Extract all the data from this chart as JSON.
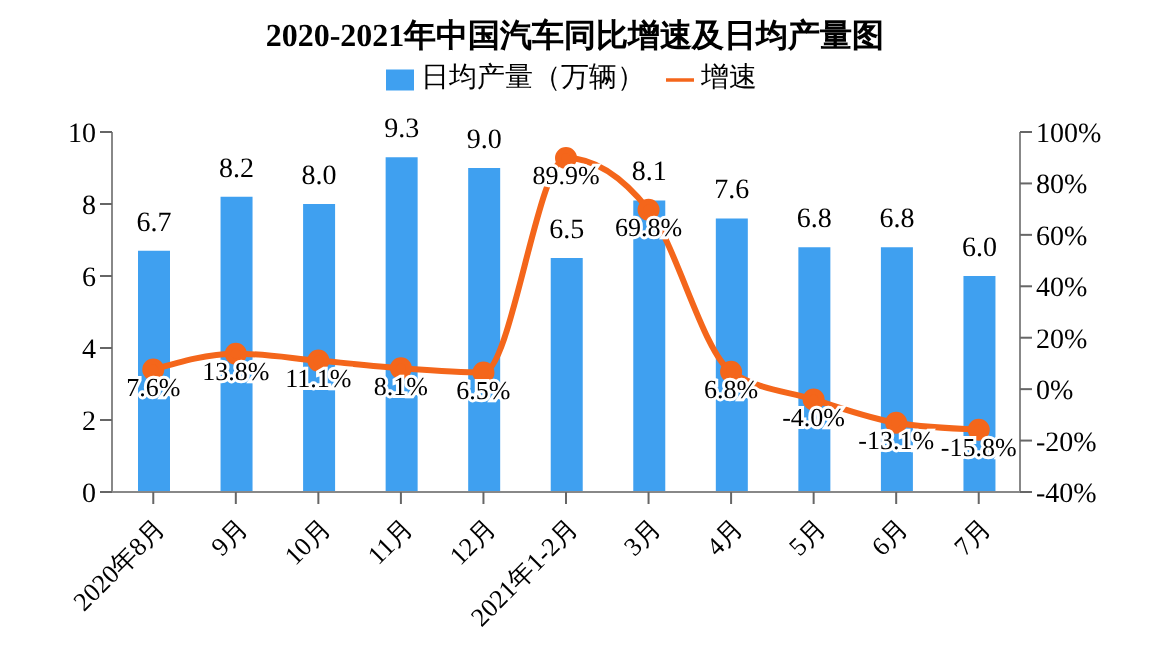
{
  "chart_data": {
    "type": "bar",
    "title": "2020-2021年中国汽车同比增速及日均产量图",
    "categories": [
      "2020年8月",
      "9月",
      "10月",
      "11月",
      "12月",
      "2021年1-2月",
      "3月",
      "4月",
      "5月",
      "6月",
      "7月"
    ],
    "series": [
      {
        "name": "日均产量（万辆）",
        "color": "#3fa0f0",
        "values": [
          6.7,
          8.2,
          8.0,
          9.3,
          9.0,
          6.5,
          8.1,
          7.6,
          6.8,
          6.8,
          6.0
        ],
        "value_labels": [
          "6.7",
          "8.2",
          "8.0",
          "9.3",
          "9.0",
          "6.5",
          "8.1",
          "7.6",
          "6.8",
          "6.8",
          "6.0"
        ]
      },
      {
        "name": "增速",
        "type": "line",
        "axis": "y2",
        "color": "#f4661b",
        "values": [
          7.6,
          13.8,
          11.1,
          8.1,
          6.5,
          89.9,
          69.8,
          6.8,
          -4.0,
          -13.1,
          -15.8
        ],
        "value_labels": [
          "7.6%",
          "13.8%",
          "11.1%",
          "8.1%",
          "6.5%",
          "89.9%",
          "69.8%",
          "6.8%",
          "-4.0%",
          "-13.1%",
          "-15.8%"
        ]
      }
    ],
    "ylim": [
      0,
      10
    ],
    "yticks": [
      0,
      2,
      4,
      6,
      8,
      10
    ],
    "y2lim": [
      -40,
      100
    ],
    "y2ticks": [
      {
        "value": -40,
        "label": "-40%"
      },
      {
        "value": -20,
        "label": "-20%"
      },
      {
        "value": 0,
        "label": "0%"
      },
      {
        "value": 20,
        "label": "20%"
      },
      {
        "value": 40,
        "label": "40%"
      },
      {
        "value": 60,
        "label": "60%"
      },
      {
        "value": 80,
        "label": "80%"
      },
      {
        "value": 100,
        "label": "100%"
      }
    ],
    "legend": "top",
    "marker": "circle",
    "line_style": "solid",
    "grid": false
  }
}
